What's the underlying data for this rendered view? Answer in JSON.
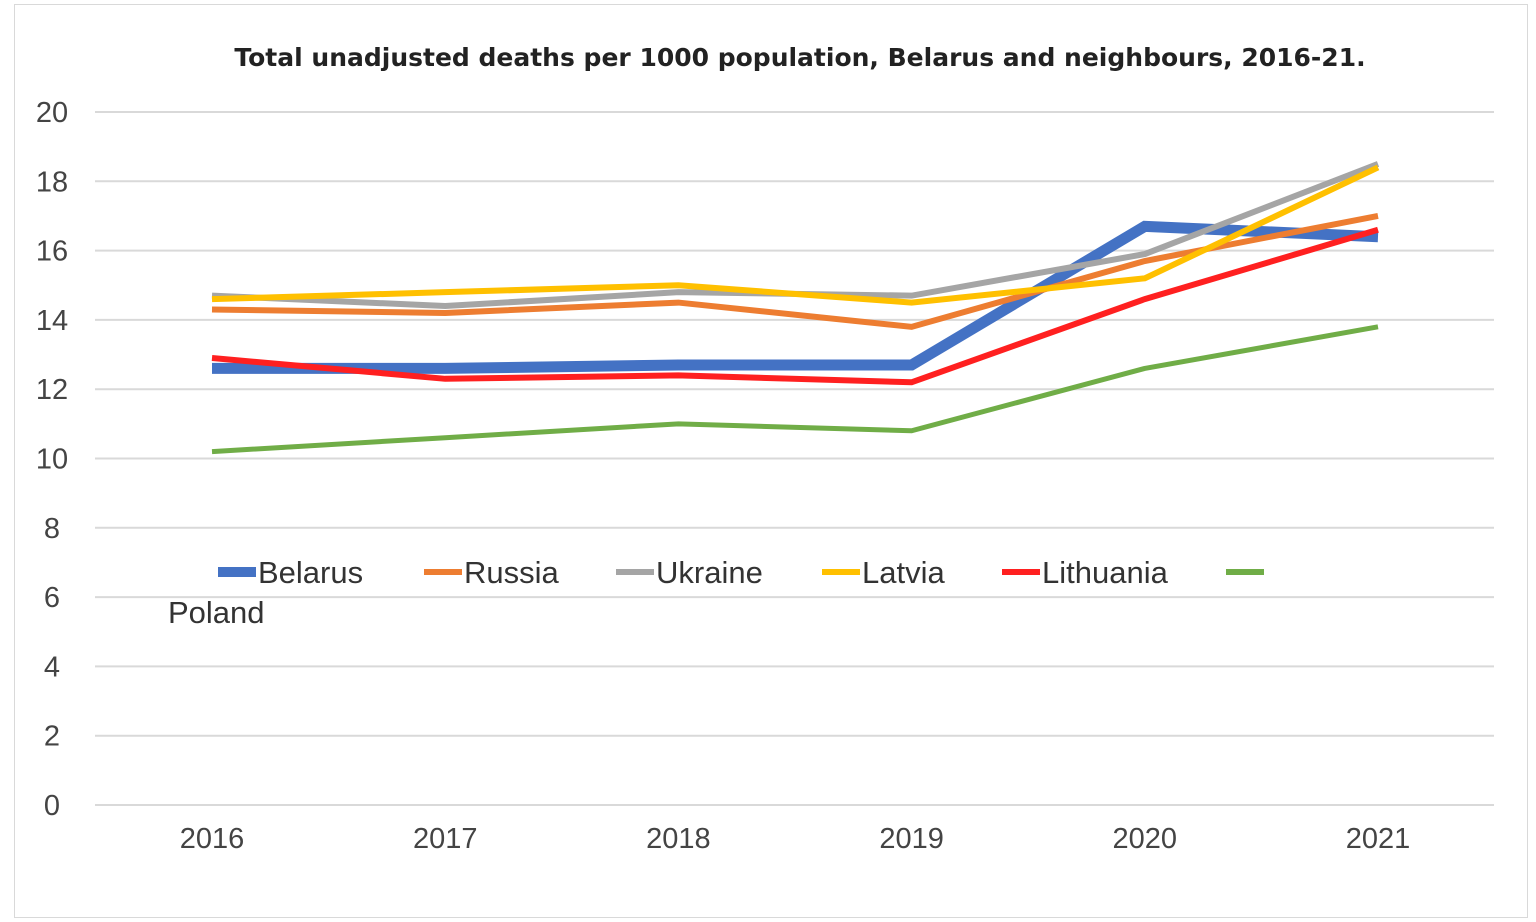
{
  "chart_data": {
    "type": "line",
    "title": "Total unadjusted deaths per 1000 population, Belarus and neighbours, 2016-21.",
    "xlabel": "",
    "ylabel": "",
    "categories": [
      "2016",
      "2017",
      "2018",
      "2019",
      "2020",
      "2021"
    ],
    "ylim": [
      0,
      20
    ],
    "yticks": [
      0,
      2,
      4,
      6,
      8,
      10,
      12,
      14,
      16,
      18,
      20
    ],
    "grid": true,
    "legend_position": "inside-middle",
    "series": [
      {
        "name": "Belarus",
        "color": "#4472C4",
        "values": [
          12.6,
          12.6,
          12.7,
          12.7,
          16.7,
          16.4
        ]
      },
      {
        "name": "Russia",
        "color": "#ED7D31",
        "values": [
          14.3,
          14.2,
          14.5,
          13.8,
          15.7,
          17.0
        ]
      },
      {
        "name": "Ukraine",
        "color": "#A5A5A5",
        "values": [
          14.7,
          14.4,
          14.8,
          14.7,
          15.9,
          18.5
        ]
      },
      {
        "name": "Latvia",
        "color": "#FFC000",
        "values": [
          14.6,
          14.8,
          15.0,
          14.5,
          15.2,
          18.4
        ]
      },
      {
        "name": "Lithuania",
        "color": "#FF2020",
        "values": [
          12.9,
          12.3,
          12.4,
          12.2,
          14.6,
          16.6
        ]
      },
      {
        "name": "Poland",
        "color": "#70AD47",
        "values": [
          10.2,
          10.6,
          11.0,
          10.8,
          12.6,
          13.8
        ]
      }
    ]
  }
}
